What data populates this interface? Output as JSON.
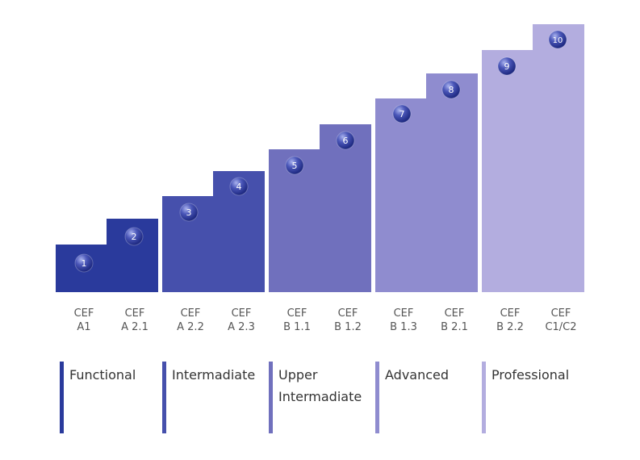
{
  "bands": [
    {
      "label": "Functional",
      "color": "#2a3a9c",
      "steps": [
        {
          "num": "1",
          "cef": [
            "CEF",
            "A1"
          ]
        },
        {
          "num": "2",
          "cef": [
            "CEF",
            "A 2.1"
          ]
        }
      ]
    },
    {
      "label": "Intermadiate",
      "color": "#4650ac",
      "steps": [
        {
          "num": "3",
          "cef": [
            "CEF",
            "A 2.2"
          ]
        },
        {
          "num": "4",
          "cef": [
            "CEF",
            "A 2.3"
          ]
        }
      ]
    },
    {
      "label": [
        "Upper",
        "Intermadiate"
      ],
      "color": "#7070bd",
      "steps": [
        {
          "num": "5",
          "cef": [
            "CEF",
            "B 1.1"
          ]
        },
        {
          "num": "6",
          "cef": [
            "CEF",
            "B 1.2"
          ]
        }
      ]
    },
    {
      "label": "Advanced",
      "color": "#8f8ccf",
      "steps": [
        {
          "num": "7",
          "cef": [
            "CEF",
            "B 1.3"
          ]
        },
        {
          "num": "8",
          "cef": [
            "CEF",
            "B 2.1"
          ]
        }
      ]
    },
    {
      "label": "Professional",
      "color": "#b3addf",
      "steps": [
        {
          "num": "9",
          "cef": [
            "CEF",
            "B 2.2"
          ]
        },
        {
          "num": "10",
          "cef": [
            "CEF",
            "C1/C2"
          ]
        }
      ]
    }
  ]
}
